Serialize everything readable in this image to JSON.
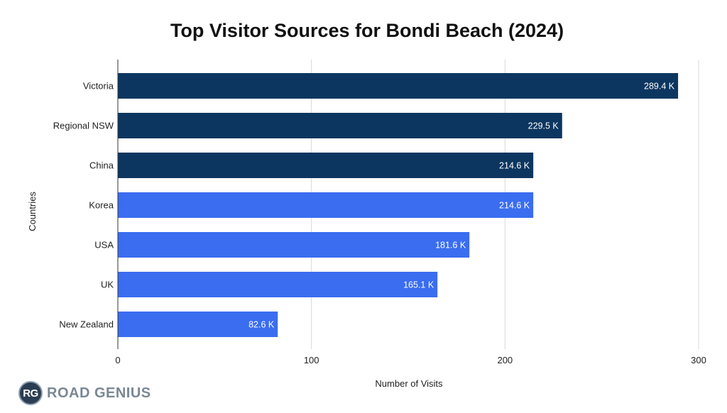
{
  "chart_data": {
    "type": "bar",
    "orientation": "horizontal",
    "title": "Top Visitor Sources for Bondi Beach (2024)",
    "xlabel": "Number of Visits",
    "ylabel": "Countries",
    "categories": [
      "Victoria",
      "Regional NSW",
      "China",
      "Korea",
      "USA",
      "UK",
      "New Zealand"
    ],
    "values": [
      289.4,
      229.5,
      214.6,
      214.6,
      181.6,
      165.1,
      82.6
    ],
    "data_labels": [
      "289.4 K",
      "229.5 K",
      "214.6 K",
      "214.6 K",
      "181.6 K",
      "165.1 K",
      "82.6 K"
    ],
    "bar_colors": [
      "#0c3660",
      "#0c3660",
      "#0c3660",
      "#3a6df0",
      "#3a6df0",
      "#3a6df0",
      "#3a6df0"
    ],
    "xlim": [
      0,
      300
    ],
    "xticks": [
      0,
      100,
      200,
      300
    ],
    "grid": true,
    "legend": "none"
  },
  "branding": {
    "badge": "RG",
    "name": "ROAD GENIUS"
  }
}
